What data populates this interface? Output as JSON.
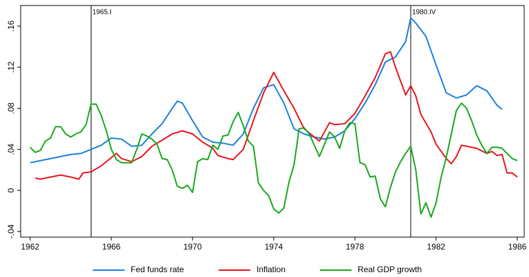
{
  "chart_data": {
    "type": "line",
    "xlim": [
      1961.53,
      1986.34
    ],
    "ylim": [
      -0.0455,
      0.1801
    ],
    "xticks": [
      1962,
      1966,
      1970,
      1974,
      1978,
      1982,
      1986
    ],
    "yticks": [
      {
        "value": -0.04,
        "label": "-.04"
      },
      0,
      {
        "value": 0.04,
        "label": ".04"
      },
      {
        "value": 0.08,
        "label": ".08"
      },
      {
        "value": 0.12,
        "label": ".12"
      },
      {
        "value": 0.16,
        "label": ".16"
      }
    ],
    "grid": false,
    "legend": "bottom",
    "annotations": [
      {
        "label": "1965.I",
        "x": 1965.0
      },
      {
        "label": "1980.IV",
        "x": 1980.75
      }
    ],
    "series": [
      {
        "name": "Fed funds rate",
        "color": "#1a7fe0",
        "x": [
          1962.0,
          1962.5,
          1963.0,
          1963.5,
          1964.0,
          1964.5,
          1965.0,
          1965.5,
          1966.0,
          1966.5,
          1967.0,
          1967.5,
          1968.0,
          1968.5,
          1969.0,
          1969.25,
          1969.5,
          1970.0,
          1970.5,
          1971.0,
          1971.5,
          1972.0,
          1972.5,
          1973.0,
          1973.5,
          1974.0,
          1974.5,
          1975.0,
          1975.5,
          1976.0,
          1976.5,
          1977.0,
          1977.5,
          1978.0,
          1978.5,
          1979.0,
          1979.5,
          1980.0,
          1980.5,
          1980.75,
          1981.0,
          1981.5,
          1982.0,
          1982.5,
          1983.0,
          1983.5,
          1984.0,
          1984.5,
          1985.0,
          1985.25
        ],
        "values": [
          0.027,
          0.029,
          0.031,
          0.033,
          0.035,
          0.036,
          0.04,
          0.044,
          0.051,
          0.05,
          0.043,
          0.044,
          0.055,
          0.065,
          0.08,
          0.087,
          0.085,
          0.068,
          0.052,
          0.047,
          0.046,
          0.044,
          0.055,
          0.08,
          0.1,
          0.103,
          0.085,
          0.06,
          0.055,
          0.052,
          0.05,
          0.052,
          0.058,
          0.07,
          0.085,
          0.103,
          0.125,
          0.13,
          0.145,
          0.168,
          0.163,
          0.15,
          0.122,
          0.095,
          0.09,
          0.093,
          0.102,
          0.097,
          0.083,
          0.079
        ]
      },
      {
        "name": "Inflation",
        "color": "#e8141a",
        "x": [
          1962.25,
          1962.5,
          1963.0,
          1963.5,
          1964.0,
          1964.4,
          1964.6,
          1965.0,
          1965.5,
          1966.0,
          1966.25,
          1966.5,
          1967.0,
          1967.5,
          1968.0,
          1968.5,
          1969.0,
          1969.5,
          1970.0,
          1970.5,
          1971.0,
          1971.25,
          1971.75,
          1972.0,
          1972.5,
          1973.0,
          1973.5,
          1974.0,
          1974.5,
          1975.0,
          1975.5,
          1976.0,
          1976.25,
          1976.75,
          1977.0,
          1977.5,
          1978.0,
          1978.5,
          1979.0,
          1979.5,
          1979.75,
          1980.0,
          1980.5,
          1980.75,
          1981.0,
          1981.25,
          1981.75,
          1982.0,
          1982.5,
          1982.75,
          1983.0,
          1983.25,
          1983.75,
          1984.0,
          1984.5,
          1984.75,
          1985.0,
          1985.25,
          1985.5,
          1985.75,
          1986.0
        ],
        "values": [
          0.012,
          0.011,
          0.013,
          0.015,
          0.013,
          0.011,
          0.017,
          0.018,
          0.024,
          0.032,
          0.036,
          0.031,
          0.028,
          0.033,
          0.043,
          0.049,
          0.055,
          0.058,
          0.055,
          0.047,
          0.041,
          0.034,
          0.031,
          0.03,
          0.04,
          0.068,
          0.095,
          0.115,
          0.097,
          0.08,
          0.06,
          0.052,
          0.048,
          0.066,
          0.064,
          0.065,
          0.075,
          0.092,
          0.11,
          0.133,
          0.135,
          0.12,
          0.093,
          0.102,
          0.092,
          0.074,
          0.057,
          0.045,
          0.031,
          0.026,
          0.033,
          0.044,
          0.042,
          0.041,
          0.036,
          0.038,
          0.034,
          0.035,
          0.017,
          0.017,
          0.013
        ]
      },
      {
        "name": "Real GDP growth",
        "color": "#17a81c",
        "x": [
          1962.0,
          1962.25,
          1962.5,
          1962.75,
          1963.0,
          1963.25,
          1963.5,
          1963.75,
          1964.0,
          1964.25,
          1964.5,
          1964.75,
          1965.0,
          1965.25,
          1965.5,
          1965.75,
          1966.0,
          1966.25,
          1966.5,
          1966.75,
          1967.0,
          1967.25,
          1967.5,
          1967.75,
          1968.0,
          1968.25,
          1968.5,
          1968.75,
          1969.0,
          1969.25,
          1969.5,
          1969.75,
          1970.0,
          1970.25,
          1970.5,
          1970.75,
          1971.0,
          1971.25,
          1971.5,
          1971.75,
          1972.0,
          1972.25,
          1972.5,
          1972.75,
          1973.0,
          1973.25,
          1973.5,
          1973.75,
          1974.0,
          1974.25,
          1974.5,
          1974.75,
          1975.0,
          1975.25,
          1975.5,
          1975.75,
          1976.0,
          1976.25,
          1976.5,
          1976.75,
          1977.0,
          1977.25,
          1977.5,
          1977.75,
          1978.0,
          1978.25,
          1978.5,
          1978.75,
          1979.0,
          1979.25,
          1979.5,
          1979.75,
          1980.0,
          1980.25,
          1980.5,
          1980.75,
          1981.0,
          1981.25,
          1981.5,
          1981.75,
          1982.0,
          1982.25,
          1982.5,
          1982.75,
          1983.0,
          1983.25,
          1983.5,
          1983.75,
          1984.0,
          1984.25,
          1984.5,
          1984.75,
          1985.0,
          1985.25,
          1985.5,
          1985.75,
          1986.0
        ],
        "values": [
          0.042,
          0.037,
          0.039,
          0.048,
          0.051,
          0.062,
          0.062,
          0.055,
          0.052,
          0.055,
          0.057,
          0.064,
          0.084,
          0.084,
          0.073,
          0.058,
          0.04,
          0.03,
          0.027,
          0.027,
          0.027,
          0.04,
          0.055,
          0.053,
          0.05,
          0.045,
          0.031,
          0.03,
          0.02,
          0.004,
          0.002,
          0.005,
          -0.002,
          0.028,
          0.031,
          0.03,
          0.044,
          0.04,
          0.053,
          0.054,
          0.067,
          0.076,
          0.063,
          0.048,
          0.043,
          0.007,
          0.0,
          -0.005,
          -0.018,
          -0.022,
          -0.017,
          0.008,
          0.025,
          0.06,
          0.061,
          0.055,
          0.044,
          0.033,
          0.045,
          0.057,
          0.052,
          0.041,
          0.058,
          0.066,
          0.065,
          0.027,
          0.025,
          0.013,
          0.014,
          -0.008,
          -0.016,
          0.003,
          0.018,
          0.028,
          0.036,
          0.043,
          0.02,
          -0.023,
          -0.012,
          -0.026,
          -0.012,
          0.013,
          0.032,
          0.055,
          0.078,
          0.085,
          0.08,
          0.068,
          0.054,
          0.044,
          0.036,
          0.042,
          0.042,
          0.041,
          0.036,
          0.031,
          0.029
        ]
      }
    ]
  }
}
